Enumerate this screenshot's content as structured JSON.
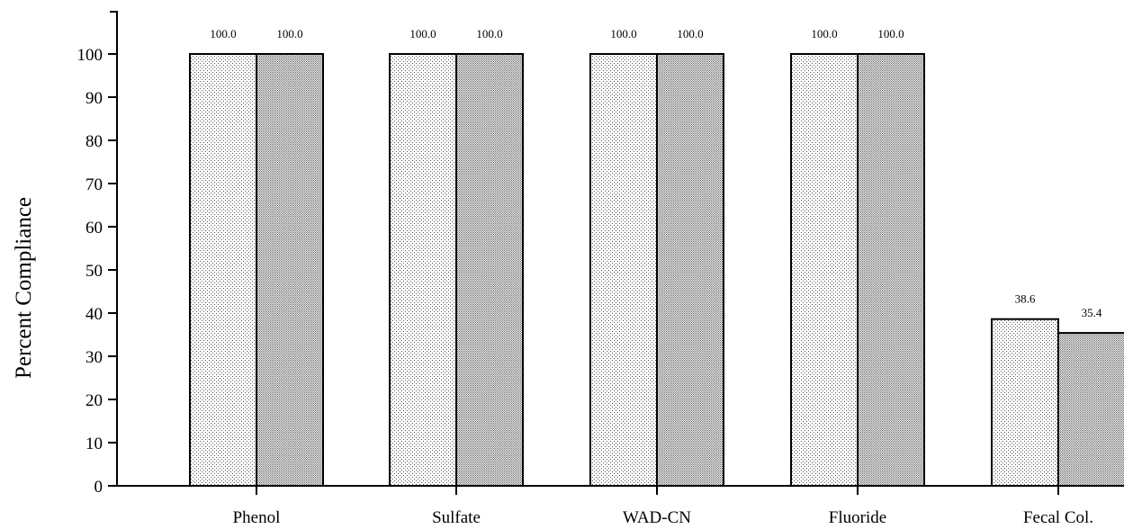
{
  "chart_data": {
    "type": "bar",
    "title": "",
    "xlabel": "",
    "ylabel": "Percent Compliance",
    "ylim": [
      0,
      110
    ],
    "yticks": [
      0,
      10,
      20,
      30,
      40,
      50,
      60,
      70,
      80,
      90,
      100
    ],
    "categories": [
      "Phenol",
      "Sulfate",
      "WAD-CN",
      "Fluoride",
      "Fecal Col."
    ],
    "series": [
      {
        "values": [
          100.0,
          100.0,
          100.0,
          100.0,
          38.6
        ],
        "labels": [
          "100.0",
          "100.0",
          "100.0",
          "100.0",
          "38.6"
        ],
        "pattern": "light-dots"
      },
      {
        "values": [
          100.0,
          100.0,
          100.0,
          100.0,
          35.4
        ],
        "labels": [
          "100.0",
          "100.0",
          "100.0",
          "100.0",
          "35.4"
        ],
        "pattern": "dense-dots"
      }
    ],
    "grid": false,
    "legend": "none",
    "colors": {
      "axis": "#000000",
      "bar_fill": "#ffffff",
      "bar_stroke": "#000000"
    }
  }
}
